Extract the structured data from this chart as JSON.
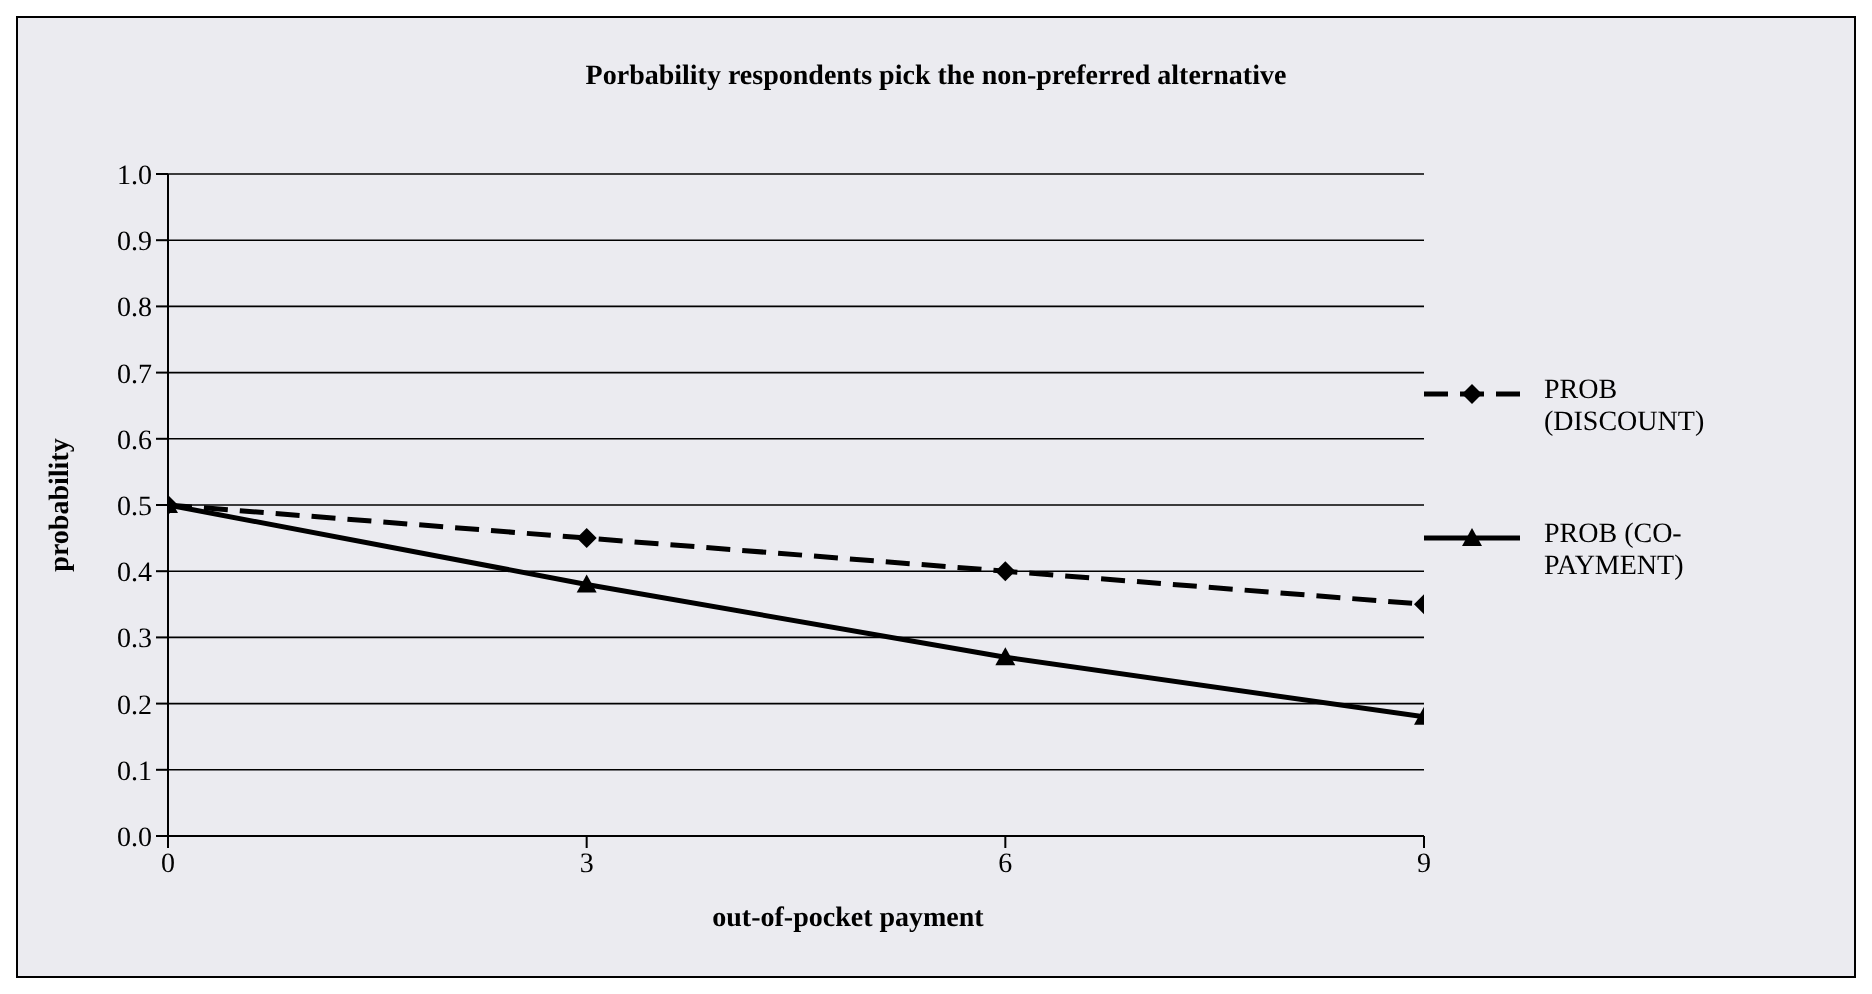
{
  "chart_data": {
    "type": "line",
    "title": "Porbability respondents pick the non-preferred alternative",
    "xlabel": "out-of-pocket payment",
    "ylabel": "probability",
    "x": [
      0,
      3,
      6,
      9
    ],
    "xlim": [
      0,
      9
    ],
    "xticks": [
      0,
      3,
      6,
      9
    ],
    "ylim": [
      0,
      1
    ],
    "yticks": [
      {
        "value": 0,
        "label": "0.0"
      },
      0.1,
      0.2,
      0.3,
      0.4,
      0.5,
      0.6,
      0.7,
      0.8,
      0.9,
      {
        "value": 1,
        "label": "1.0"
      }
    ],
    "grid": "y",
    "legend": "right",
    "series": [
      {
        "name": "PROB (DISCOUNT)",
        "color": "#000000",
        "marker": "diamond",
        "line_style": "dashed",
        "values": [
          0.5,
          0.45,
          0.4,
          0.35
        ]
      },
      {
        "name": "PROB (CO-PAYMENT)",
        "color": "#000000",
        "marker": "triangle",
        "line_style": "solid",
        "values": [
          0.5,
          0.38,
          0.27,
          0.18
        ]
      }
    ]
  }
}
